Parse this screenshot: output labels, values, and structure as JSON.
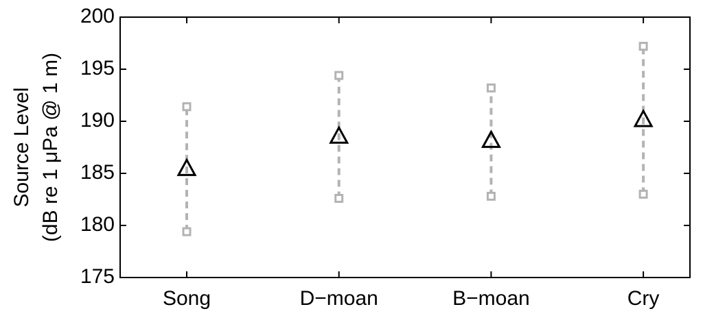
{
  "chart_data": {
    "type": "errorbar",
    "ylabel": [
      "Source Level",
      "(dB re 1 μPa @ 1 m)"
    ],
    "categories": [
      "Song",
      "D−moan",
      "B−moan",
      "Cry"
    ],
    "values": [
      185.5,
      188.6,
      188.2,
      190.2
    ],
    "low": [
      179.4,
      182.6,
      182.8,
      183.0
    ],
    "high": [
      191.4,
      194.4,
      193.2,
      197.2
    ],
    "color": "#000000",
    "range_color": "#b3b3b3",
    "ylim": [
      175,
      200
    ],
    "yticks": [
      175,
      180,
      185,
      190,
      195,
      200
    ]
  }
}
